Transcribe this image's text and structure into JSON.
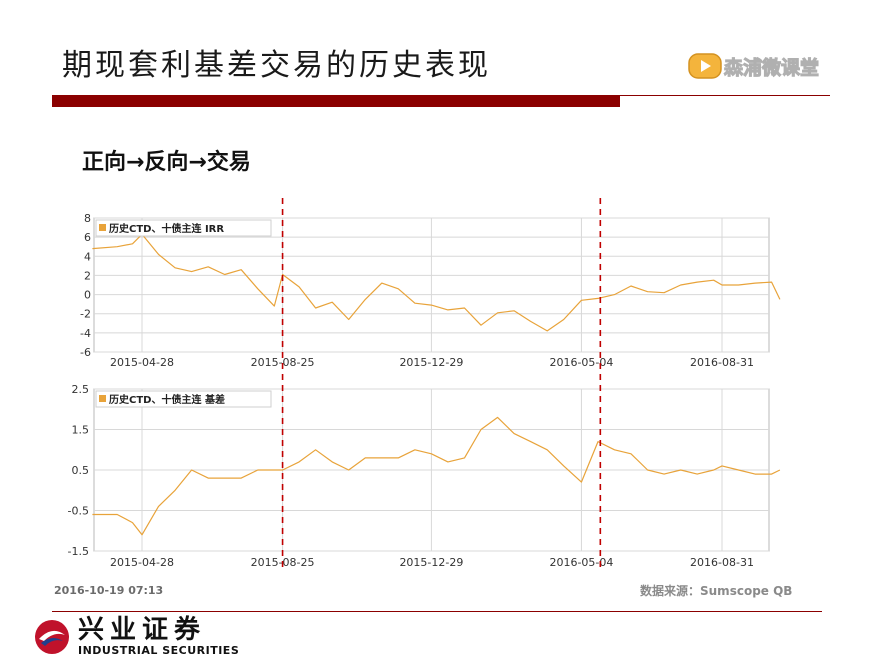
{
  "page": {
    "title": "期现套利基差交易的历史表现",
    "brand": "森浦微课堂",
    "subtitle": "正向→反向→交易",
    "timestamp": "2016-10-19 07:13",
    "source": "数据来源：Sumscope QB",
    "company_cn": "兴业证券",
    "company_en": "INDUSTRIAL SECURITIES",
    "colors": {
      "line": "#e8a33a",
      "accent": "#8b0000",
      "marker": "#c00000"
    }
  },
  "chart_data": [
    {
      "type": "line",
      "legend": "历史CTD、十债主连 IRR",
      "x_tick_labels": [
        "2015-04-28",
        "2015-08-25",
        "2015-12-29",
        "2016-05-04",
        "2016-08-31"
      ],
      "y_tick_labels": [
        "8",
        "6",
        "4",
        "2",
        "0",
        "-2",
        "-4",
        "-6"
      ],
      "ylim": [
        -6,
        8
      ],
      "x": [
        "2015-03-17",
        "2015-04-07",
        "2015-04-20",
        "2015-04-28",
        "2015-05-12",
        "2015-05-26",
        "2015-06-09",
        "2015-06-23",
        "2015-07-07",
        "2015-07-21",
        "2015-08-04",
        "2015-08-18",
        "2015-08-25",
        "2015-09-08",
        "2015-09-22",
        "2015-10-06",
        "2015-10-20",
        "2015-11-03",
        "2015-11-17",
        "2015-12-01",
        "2015-12-15",
        "2015-12-29",
        "2016-01-12",
        "2016-01-26",
        "2016-02-09",
        "2016-02-23",
        "2016-03-08",
        "2016-03-22",
        "2016-04-05",
        "2016-04-19",
        "2016-05-04",
        "2016-05-18",
        "2016-06-01",
        "2016-06-15",
        "2016-06-29",
        "2016-07-13",
        "2016-07-27",
        "2016-08-10",
        "2016-08-24",
        "2016-08-31",
        "2016-09-14",
        "2016-09-28",
        "2016-10-12",
        "2016-10-19"
      ],
      "values": [
        4.8,
        5.0,
        5.3,
        6.3,
        4.2,
        2.8,
        2.4,
        2.9,
        2.1,
        2.6,
        0.6,
        -1.2,
        2.1,
        0.8,
        -1.4,
        -0.8,
        -2.6,
        -0.5,
        1.2,
        0.6,
        -0.9,
        -1.1,
        -1.6,
        -1.4,
        -3.2,
        -1.9,
        -1.7,
        -2.8,
        -3.8,
        -2.6,
        -0.6,
        -0.4,
        0.0,
        0.9,
        0.3,
        0.2,
        1.0,
        1.3,
        1.5,
        1.0,
        1.0,
        1.2,
        1.3,
        -0.5
      ]
    },
    {
      "type": "line",
      "legend": "历史CTD、十债主连 基差",
      "x_tick_labels": [
        "2015-04-28",
        "2015-08-25",
        "2015-12-29",
        "2016-05-04",
        "2016-08-31"
      ],
      "y_tick_labels": [
        "2.5",
        "1.5",
        "0.5",
        "-0.5",
        "-1.5"
      ],
      "ylim": [
        -1.5,
        2.5
      ],
      "x": [
        "2015-03-17",
        "2015-04-07",
        "2015-04-20",
        "2015-04-28",
        "2015-05-12",
        "2015-05-26",
        "2015-06-09",
        "2015-06-23",
        "2015-07-07",
        "2015-07-21",
        "2015-08-04",
        "2015-08-18",
        "2015-08-25",
        "2015-09-08",
        "2015-09-22",
        "2015-10-06",
        "2015-10-20",
        "2015-11-03",
        "2015-11-17",
        "2015-12-01",
        "2015-12-15",
        "2015-12-29",
        "2016-01-12",
        "2016-01-26",
        "2016-02-09",
        "2016-02-23",
        "2016-03-08",
        "2016-03-22",
        "2016-04-05",
        "2016-04-19",
        "2016-05-04",
        "2016-05-18",
        "2016-06-01",
        "2016-06-15",
        "2016-06-29",
        "2016-07-13",
        "2016-07-27",
        "2016-08-10",
        "2016-08-24",
        "2016-08-31",
        "2016-09-14",
        "2016-09-28",
        "2016-10-12",
        "2016-10-19"
      ],
      "values": [
        -0.6,
        -0.6,
        -0.8,
        -1.1,
        -0.4,
        0.0,
        0.5,
        0.3,
        0.3,
        0.3,
        0.5,
        0.5,
        0.5,
        0.7,
        1.0,
        0.7,
        0.5,
        0.8,
        0.8,
        0.8,
        1.0,
        0.9,
        0.7,
        0.8,
        1.5,
        1.8,
        1.4,
        1.2,
        1.0,
        0.6,
        0.2,
        1.2,
        1.0,
        0.9,
        0.5,
        0.4,
        0.5,
        0.4,
        0.5,
        0.6,
        0.5,
        0.4,
        0.4,
        0.5
      ]
    }
  ],
  "markers": [
    "2015-08-25",
    "2016-05-20"
  ]
}
